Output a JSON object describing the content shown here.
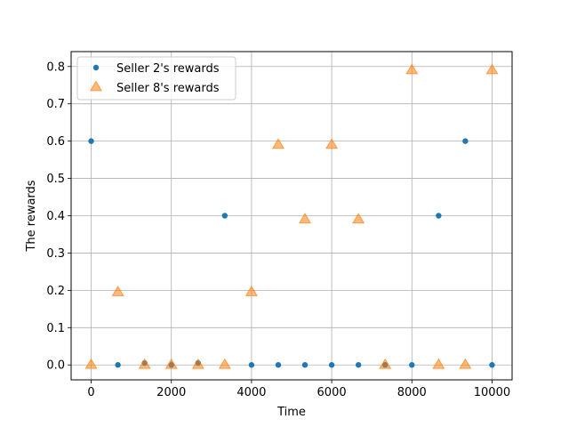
{
  "chart_data": {
    "type": "scatter",
    "title": "",
    "xlabel": "Time",
    "ylabel": "The rewards",
    "xlim": [
      -500,
      10500
    ],
    "ylim": [
      -0.04,
      0.84
    ],
    "xticks": [
      0,
      2000,
      4000,
      6000,
      8000,
      10000
    ],
    "yticks": [
      0.0,
      0.1,
      0.2,
      0.3,
      0.4,
      0.5,
      0.6,
      0.7,
      0.8
    ],
    "grid": true,
    "legend_position": "top-left",
    "series": [
      {
        "name": "Seller 2's rewards",
        "marker": "circle",
        "color": "#1f77b4",
        "x": [
          0,
          667,
          1333,
          2000,
          2667,
          3333,
          4000,
          4667,
          5333,
          6000,
          6667,
          7333,
          8000,
          8667,
          9333,
          10000
        ],
        "y": [
          0.6,
          0.0,
          0.005,
          0.0,
          0.005,
          0.4,
          0.0,
          0.0,
          0.0,
          0.0,
          0.0,
          0.0,
          0.0,
          0.4,
          0.6,
          0.0
        ]
      },
      {
        "name": "Seller 8's rewards",
        "marker": "triangle",
        "color": "#ff7f0e",
        "x": [
          0,
          667,
          1333,
          2000,
          2667,
          3333,
          4000,
          4667,
          5333,
          6000,
          6667,
          7333,
          8000,
          8667,
          9333,
          10000
        ],
        "y": [
          0.0,
          0.195,
          0.0,
          0.0,
          0.0,
          0.0,
          0.195,
          0.59,
          0.39,
          0.59,
          0.39,
          0.0,
          0.79,
          0.0,
          0.0,
          0.79
        ]
      }
    ]
  }
}
